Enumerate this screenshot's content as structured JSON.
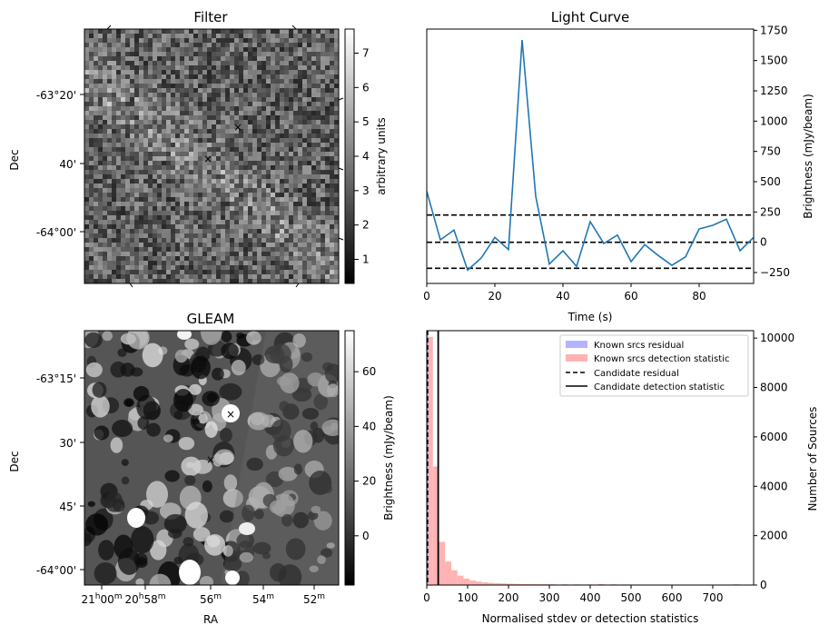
{
  "chart_data": [
    {
      "type": "heatmap",
      "panel": "filter",
      "title": "Filter",
      "ylabel": "Dec",
      "y_ticks": [
        "-63°20'",
        "40'",
        "-64°00'"
      ],
      "colorbar": {
        "label": "arbitrary units",
        "range": [
          0.3,
          7.7
        ],
        "ticks": [
          "1",
          "2",
          "3",
          "4",
          "5",
          "6",
          "7"
        ],
        "tick_values": [
          1,
          2,
          3,
          4,
          5,
          6,
          7
        ],
        "colormap": "gray"
      },
      "markers": [
        {
          "name": "candidate",
          "symbol": "x",
          "color": "#ff0000"
        },
        {
          "name": "known-source",
          "symbol": "x",
          "color": "#0000ff"
        }
      ]
    },
    {
      "type": "line",
      "panel": "light-curve",
      "title": "Light Curve",
      "xlabel": "Time (s)",
      "ylabel": "Brightness (mJy/beam)",
      "xlim": [
        0,
        96
      ],
      "ylim": [
        -340,
        1760
      ],
      "x_ticks": [
        0,
        20,
        40,
        60,
        80
      ],
      "y_ticks": [
        -250,
        0,
        250,
        500,
        750,
        1000,
        1250,
        1500,
        1750
      ],
      "series": [
        {
          "color": "#1f77b4",
          "x": [
            0,
            4,
            8,
            12,
            16,
            20,
            24,
            28,
            32,
            36,
            40,
            44,
            48,
            52,
            56,
            60,
            64,
            68,
            72,
            76,
            80,
            84,
            88,
            92,
            96
          ],
          "y": [
            420,
            20,
            100,
            -230,
            -130,
            40,
            -60,
            1670,
            380,
            -180,
            -70,
            -200,
            170,
            -10,
            60,
            -160,
            -20,
            -110,
            -190,
            -120,
            110,
            140,
            190,
            -70,
            40
          ]
        }
      ],
      "hlines": [
        {
          "y": 225,
          "style": "dashed",
          "color": "#000000"
        },
        {
          "y": 0,
          "style": "dashed",
          "color": "#000000"
        },
        {
          "y": -215,
          "style": "dashed",
          "color": "#000000"
        }
      ]
    },
    {
      "type": "heatmap",
      "panel": "gleam",
      "title": "GLEAM",
      "xlabel": "RA",
      "ylabel": "Dec",
      "y_ticks": [
        "-63°15'",
        "30'",
        "45'",
        "-64°00'"
      ],
      "x_ticks": [
        {
          "main": "21",
          "sup1": "h",
          "mid": "00",
          "sup2": "m"
        },
        {
          "main": "20",
          "sup1": "h",
          "mid": "58",
          "sup2": "m"
        },
        {
          "main": "56",
          "sup1": "m",
          "mid": "",
          "sup2": ""
        },
        {
          "main": "54",
          "sup1": "m",
          "mid": "",
          "sup2": ""
        },
        {
          "main": "52",
          "sup1": "m",
          "mid": "",
          "sup2": ""
        }
      ],
      "colorbar": {
        "label": "Brightness (mJy/beam)",
        "range": [
          -18,
          75
        ],
        "ticks": [
          "0",
          "20",
          "40",
          "60"
        ],
        "tick_values": [
          0,
          20,
          40,
          60
        ],
        "colormap": "gray"
      },
      "markers": [
        {
          "name": "candidate",
          "symbol": "x",
          "color": "#ff0000"
        },
        {
          "name": "known-source",
          "symbol": "x",
          "color": "#0000ff"
        }
      ]
    },
    {
      "type": "bar",
      "panel": "histogram",
      "xlabel": "Normalised stdev or detection statistics",
      "ylabel": "Number of Sources",
      "xlim": [
        0,
        800
      ],
      "ylim": [
        0,
        10300
      ],
      "x_ticks": [
        0,
        100,
        200,
        300,
        400,
        500,
        600,
        700
      ],
      "y_ticks": [
        0,
        2000,
        4000,
        6000,
        8000,
        10000
      ],
      "bin_width": 15,
      "residual_series": {
        "name": "Known srcs residual",
        "color": "#b3b3ff",
        "bins_start": [
          0
        ],
        "counts": [
          10100
        ]
      },
      "detection_series": {
        "name": "Known srcs detection statistic",
        "color": "#ffb3b3",
        "bins_start": [
          0,
          15,
          30,
          45,
          60,
          75,
          90,
          105,
          120,
          135,
          150,
          165,
          180,
          195,
          210,
          225,
          240,
          255,
          270,
          285,
          300,
          330,
          360,
          390,
          420,
          450,
          480,
          510,
          540,
          570,
          600,
          630,
          660,
          690,
          720,
          750
        ],
        "counts": [
          10050,
          4800,
          1750,
          950,
          600,
          380,
          260,
          180,
          140,
          110,
          90,
          75,
          65,
          55,
          48,
          42,
          40,
          36,
          34,
          32,
          30,
          28,
          26,
          24,
          40,
          30,
          22,
          20,
          18,
          16,
          15,
          14,
          12,
          11,
          10,
          30
        ]
      },
      "vlines": [
        {
          "name": "Candidate residual",
          "x": 2,
          "style": "dashed",
          "color": "#000000"
        },
        {
          "name": "Candidate detection statistic",
          "x": 28,
          "style": "solid",
          "color": "#000000"
        }
      ],
      "legend": {
        "placement": "top-right",
        "entries": [
          {
            "label": "Known srcs residual",
            "kind": "patch",
            "color": "#b3b3ff"
          },
          {
            "label": "Known srcs detection statistic",
            "kind": "patch",
            "color": "#ffb3b3"
          },
          {
            "label": "Candidate residual",
            "kind": "dashed-line",
            "color": "#000000"
          },
          {
            "label": "Candidate detection statistic",
            "kind": "solid-line",
            "color": "#000000"
          }
        ]
      }
    }
  ]
}
